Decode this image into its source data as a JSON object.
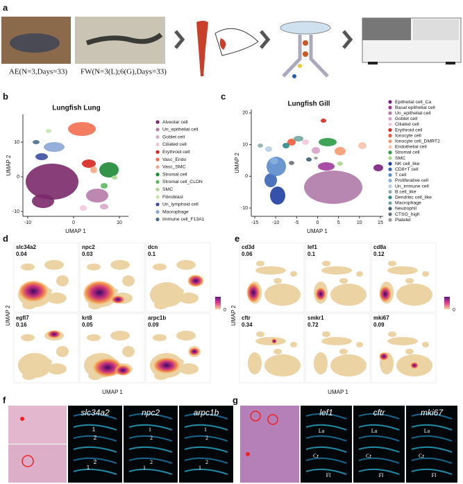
{
  "panel_a": {
    "label": "a",
    "captions": [
      "AE(N=3,Days=33)",
      "FW(N=3(L);6(G),Days=33)"
    ]
  },
  "panel_b": {
    "label": "b",
    "title": "Lungfish Lung",
    "x_label": "UMAP 1",
    "y_label": "UMAP 2",
    "xticks": [
      -10,
      0,
      10
    ],
    "yticks": [
      -10,
      0,
      10
    ],
    "legend": [
      {
        "name": "Alveolar cell",
        "color": "#7b2a6a"
      },
      {
        "name": "Un_epithelial cell",
        "color": "#b57aa9"
      },
      {
        "name": "Goblet cell",
        "color": "#d6a9c9"
      },
      {
        "name": "Ciliated cell",
        "color": "#f2c7dc"
      },
      {
        "name": "Erythroid cell",
        "color": "#d7261e"
      },
      {
        "name": "Vasc_Endo",
        "color": "#f36f50"
      },
      {
        "name": "Vasc_SMC",
        "color": "#f7a88a"
      },
      {
        "name": "Stromal cell",
        "color": "#1e8a36"
      },
      {
        "name": "Stromal cell_CLDN",
        "color": "#5cb85c"
      },
      {
        "name": "SMC",
        "color": "#a9d88f"
      },
      {
        "name": "Fibroblast",
        "color": "#c8e6b0"
      },
      {
        "name": "Un_lymphoid cell",
        "color": "#3a4fa0"
      },
      {
        "name": "Macrophage",
        "color": "#8aa6d6"
      },
      {
        "name": "Immune cell_F13A1",
        "color": "#4a6e8a"
      }
    ]
  },
  "panel_c": {
    "label": "c",
    "title": "Lungfish Gill",
    "x_label": "UMAP 1",
    "y_label": "UMAP 2",
    "xticks": [
      -15,
      -10,
      -5,
      0,
      5,
      10,
      15
    ],
    "yticks": [
      -10,
      0,
      10,
      20
    ],
    "legend": [
      {
        "name": "Epithelial cell_Ca",
        "color": "#7b1f7f"
      },
      {
        "name": "Basal epithelial cell",
        "color": "#a03a9c"
      },
      {
        "name": "Un_epithelial cell",
        "color": "#b07aa8"
      },
      {
        "name": "Goblet cell",
        "color": "#d6a2c8"
      },
      {
        "name": "Ciliated cell",
        "color": "#f0c6dc"
      },
      {
        "name": "Erythroid cell",
        "color": "#d62a1f"
      },
      {
        "name": "Ionocyte cell",
        "color": "#f05a3a"
      },
      {
        "name": "Ionocyte cell_DMRT2",
        "color": "#f49a6f"
      },
      {
        "name": "Endothelial cell",
        "color": "#f7c4ad"
      },
      {
        "name": "Stromal cell",
        "color": "#2a9a46"
      },
      {
        "name": "SMC",
        "color": "#a6d88a"
      },
      {
        "name": "NK cell_like",
        "color": "#1e3fa0"
      },
      {
        "name": "CD8+T cell",
        "color": "#3a64b6"
      },
      {
        "name": "T cell",
        "color": "#5a8ccb"
      },
      {
        "name": "Proliferative cell",
        "color": "#8ab0dd"
      },
      {
        "name": "Un_immune cell",
        "color": "#b6cfe8"
      },
      {
        "name": "B cell_like",
        "color": "#8fb0a9"
      },
      {
        "name": "Dendritic cell_like",
        "color": "#2f8a8a"
      },
      {
        "name": "Macrophage",
        "color": "#6fa8a0"
      },
      {
        "name": "Neutrophil",
        "color": "#3e5f75"
      },
      {
        "name": "CTSG_high",
        "color": "#6a6f7a"
      },
      {
        "name": "Platelet",
        "color": "#9a9a9a"
      }
    ]
  },
  "panel_d": {
    "label": "d",
    "x_label": "UMAP 1",
    "y_label": "UMAP 2",
    "colorbar_label": 0,
    "genes": [
      {
        "name": "slc34a2",
        "value": 0.04
      },
      {
        "name": "npc2",
        "value": 0.03
      },
      {
        "name": "dcn",
        "value": 0.1
      },
      {
        "name": "egfl7",
        "value": 0.16
      },
      {
        "name": "krt8",
        "value": 0.05
      },
      {
        "name": "arpc1b",
        "value": 0.09
      }
    ]
  },
  "panel_e": {
    "label": "e",
    "x_label": "UMAP 1",
    "y_label": "UMAP 2",
    "colorbar_label": 0,
    "genes": [
      {
        "name": "cd3d",
        "value": 0.06
      },
      {
        "name": "lef1",
        "value": 0.1
      },
      {
        "name": "cd8a",
        "value": 0.12
      },
      {
        "name": "cftr",
        "value": 0.34
      },
      {
        "name": "smkr1",
        "value": 0.72
      },
      {
        "name": "mki67",
        "value": 0.09
      }
    ]
  },
  "panel_f": {
    "label": "f",
    "genes": [
      "slc34a2",
      "npc2",
      "arpc1b"
    ],
    "region_labels": [
      "1",
      "2"
    ]
  },
  "panel_g": {
    "label": "g",
    "genes": [
      "lef1",
      "cftr",
      "mki67"
    ],
    "region_labels": [
      "La",
      "Cr",
      "Fl"
    ]
  }
}
